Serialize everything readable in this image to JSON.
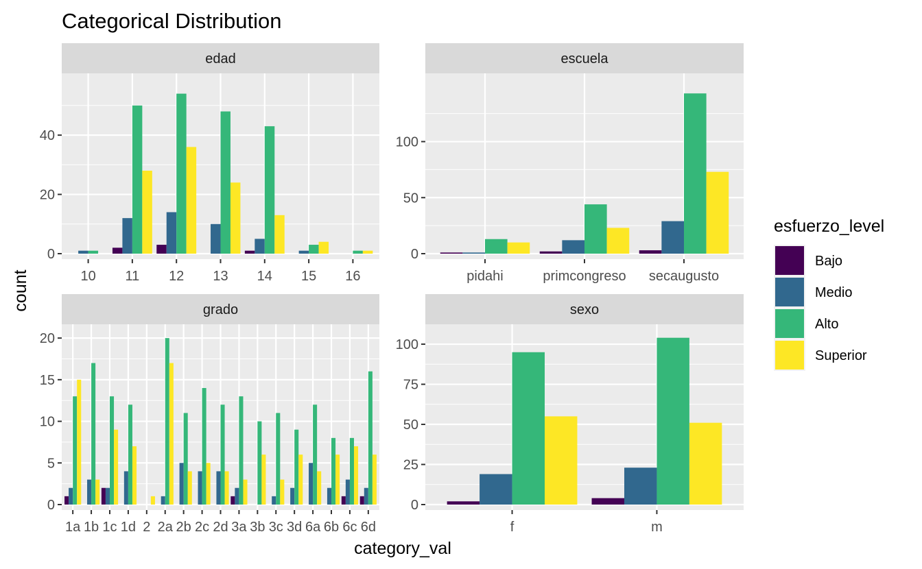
{
  "chart_data": {
    "type": "bar",
    "title": "Categorical Distribution",
    "xlabel": "category_val",
    "ylabel": "count",
    "grid": true,
    "legend": {
      "title": "esfuerzo_level",
      "position": "right",
      "entries": [
        "Bajo",
        "Medio",
        "Alto",
        "Superior"
      ]
    },
    "series_colors": {
      "Bajo": "#440154",
      "Medio": "#31688E",
      "Alto": "#35B779",
      "Superior": "#FDE725"
    },
    "facets": [
      {
        "strip": "edad",
        "categories": [
          "10",
          "11",
          "12",
          "13",
          "14",
          "15",
          "16"
        ],
        "ylim": [
          0,
          59
        ],
        "y_ticks": [
          0,
          20,
          40
        ],
        "series": [
          {
            "name": "Bajo",
            "values": [
              0,
              2,
              3,
              0,
              1,
              0,
              0
            ]
          },
          {
            "name": "Medio",
            "values": [
              1,
              12,
              14,
              10,
              5,
              1,
              0
            ]
          },
          {
            "name": "Alto",
            "values": [
              1,
              50,
              54,
              48,
              43,
              3,
              1
            ]
          },
          {
            "name": "Superior",
            "values": [
              0,
              28,
              36,
              24,
              13,
              4,
              1
            ]
          }
        ]
      },
      {
        "strip": "escuela",
        "categories": [
          "pidahi",
          "primcongreso",
          "secaugusto"
        ],
        "ylim": [
          0,
          156
        ],
        "y_ticks": [
          0,
          50,
          100
        ],
        "series": [
          {
            "name": "Bajo",
            "values": [
              1,
              2,
              3
            ]
          },
          {
            "name": "Medio",
            "values": [
              1,
              12,
              29
            ]
          },
          {
            "name": "Alto",
            "values": [
              13,
              44,
              143
            ]
          },
          {
            "name": "Superior",
            "values": [
              10,
              23,
              73
            ]
          }
        ]
      },
      {
        "strip": "grado",
        "categories": [
          "1a",
          "1b",
          "1c",
          "1d",
          "2",
          "2a",
          "2b",
          "2c",
          "2d",
          "3a",
          "3b",
          "3c",
          "3d",
          "6a",
          "6b",
          "6c",
          "6d"
        ],
        "ylim": [
          0,
          21
        ],
        "y_ticks": [
          0,
          5,
          10,
          15,
          20
        ],
        "series": [
          {
            "name": "Bajo",
            "values": [
              1,
              0,
              2,
              0,
              0,
              0,
              0,
              0,
              0,
              1,
              0,
              0,
              0,
              0,
              0,
              1,
              1
            ]
          },
          {
            "name": "Medio",
            "values": [
              2,
              3,
              2,
              4,
              0,
              1,
              5,
              4,
              4,
              2,
              0,
              1,
              2,
              5,
              2,
              3,
              2
            ]
          },
          {
            "name": "Alto",
            "values": [
              13,
              17,
              13,
              12,
              0,
              20,
              11,
              14,
              12,
              13,
              10,
              11,
              9,
              12,
              8,
              8,
              16
            ]
          },
          {
            "name": "Superior",
            "values": [
              15,
              3,
              9,
              7,
              1,
              17,
              4,
              5,
              4,
              3,
              6,
              3,
              6,
              4,
              6,
              7,
              6
            ]
          }
        ]
      },
      {
        "strip": "sexo",
        "categories": [
          "f",
          "m"
        ],
        "ylim": [
          0,
          109
        ],
        "y_ticks": [
          0,
          25,
          50,
          75,
          100
        ],
        "series": [
          {
            "name": "Bajo",
            "values": [
              2,
              4
            ]
          },
          {
            "name": "Medio",
            "values": [
              19,
              23
            ]
          },
          {
            "name": "Alto",
            "values": [
              95,
              104
            ]
          },
          {
            "name": "Superior",
            "values": [
              55,
              51
            ]
          }
        ]
      }
    ]
  }
}
